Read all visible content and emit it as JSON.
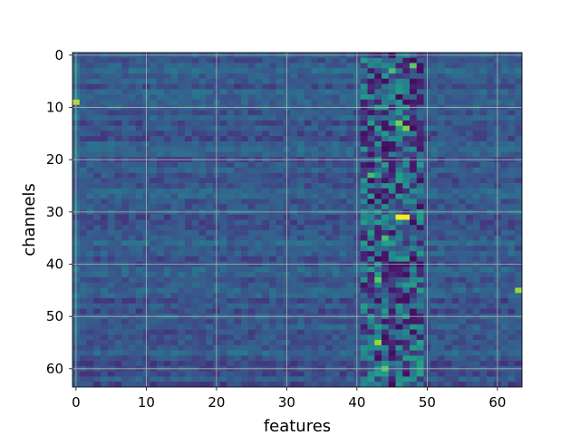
{
  "chart_data": {
    "type": "heatmap",
    "title": "",
    "xlabel": "features",
    "ylabel": "channels",
    "n_cols": 64,
    "n_rows": 64,
    "xlim": [
      -0.5,
      63.5
    ],
    "ylim": [
      63.5,
      -0.5
    ],
    "x_ticks": [
      0,
      10,
      20,
      30,
      40,
      50,
      60
    ],
    "y_ticks": [
      0,
      10,
      20,
      30,
      40,
      50,
      60
    ],
    "grid": true,
    "colormap": "viridis",
    "notes_hotspots": [
      {
        "x": 46,
        "y": 31,
        "level": 1.0
      },
      {
        "x": 47,
        "y": 31,
        "level": 1.0
      },
      {
        "x": 0,
        "y": 9,
        "level": 0.9
      },
      {
        "x": 63,
        "y": 45,
        "level": 0.85
      },
      {
        "x": 43,
        "y": 55,
        "level": 0.85
      },
      {
        "x": 46,
        "y": 13,
        "level": 0.8
      },
      {
        "x": 47,
        "y": 14,
        "level": 0.8
      },
      {
        "x": 44,
        "y": 60,
        "level": 0.75
      },
      {
        "x": 43,
        "y": 43,
        "level": 0.75
      },
      {
        "x": 44,
        "y": 35,
        "level": 0.7
      },
      {
        "x": 42,
        "y": 23,
        "level": 0.7
      },
      {
        "x": 45,
        "y": 3,
        "level": 0.7
      },
      {
        "x": 48,
        "y": 2,
        "level": 0.75
      }
    ]
  }
}
